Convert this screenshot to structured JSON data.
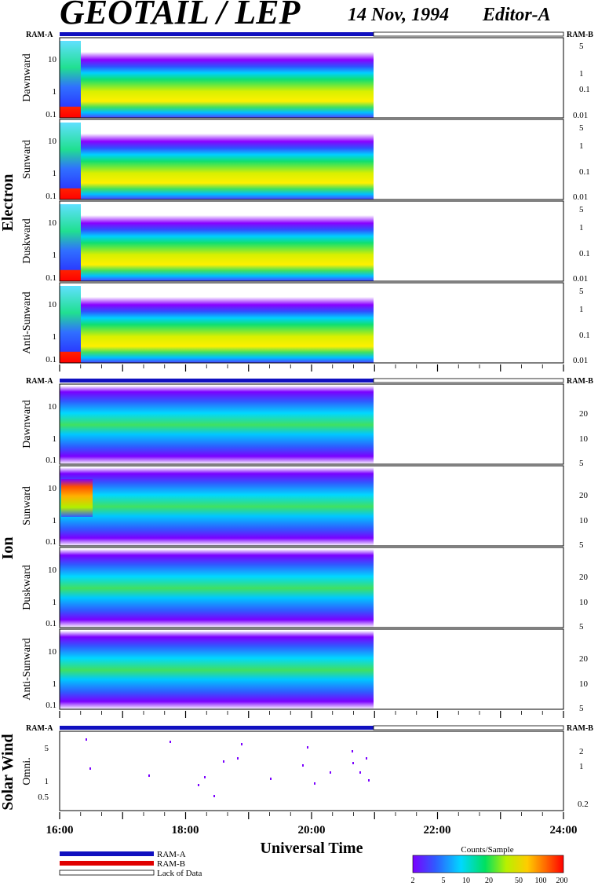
{
  "header": {
    "title": "GEOTAIL / LEP",
    "date": "14 Nov, 1994",
    "editor": "Editor-A"
  },
  "legend": {
    "ram_a": "RAM-A",
    "ram_b": "RAM-B",
    "lack": "Lack of Data"
  },
  "colorbar": {
    "title": "Counts/Sample",
    "ticks": [
      "2",
      "5",
      "10",
      "20",
      "50",
      "100",
      "200"
    ],
    "colors": [
      "#7a00ff",
      "#2f5bff",
      "#00d8ff",
      "#00e060",
      "#b8f000",
      "#ffcc00",
      "#ff6a00",
      "#ff0000"
    ]
  },
  "chart_data": {
    "type": "heatmap",
    "xlabel": "Universal Time",
    "x_ticks": [
      "16:00",
      "18:00",
      "20:00",
      "22:00",
      "24:00"
    ],
    "x_range": [
      "16:00",
      "24:00"
    ],
    "data_end": "21:00",
    "ram_labels": {
      "left": "RAM-A",
      "right": "RAM-B"
    },
    "groups": [
      {
        "name": "Electron",
        "ram_label_left": "RAM-A",
        "ram_label_right": "RAM-B",
        "panels": [
          {
            "label": "Dawnward",
            "left_ticks": [
              "10",
              "1",
              "0.1"
            ],
            "right_ticks": [
              "5",
              "1",
              "0.1",
              "0.01"
            ]
          },
          {
            "label": "Sunward",
            "left_ticks": [
              "10",
              "1",
              "0.1"
            ],
            "right_ticks": [
              "5",
              "1",
              "0.1",
              "0.01"
            ]
          },
          {
            "label": "Duskward",
            "left_ticks": [
              "10",
              "1",
              "0.1"
            ],
            "right_ticks": [
              "5",
              "1",
              "0.1",
              "0.01"
            ]
          },
          {
            "label": "Anti-Sunward",
            "left_ticks": [
              "10",
              "1",
              "0.1"
            ],
            "right_ticks": [
              "5",
              "1",
              "0.1",
              "0.01"
            ]
          }
        ]
      },
      {
        "name": "Ion",
        "ram_label_left": "RAM-A",
        "ram_label_right": "RAM-B",
        "panels": [
          {
            "label": "Dawnward",
            "left_ticks": [
              "10",
              "1",
              "0.1"
            ],
            "right_ticks": [
              "20",
              "10",
              "5"
            ]
          },
          {
            "label": "Sunward",
            "left_ticks": [
              "10",
              "1",
              "0.1"
            ],
            "right_ticks": [
              "20",
              "10",
              "5"
            ]
          },
          {
            "label": "Duskward",
            "left_ticks": [
              "10",
              "1",
              "0.1"
            ],
            "right_ticks": [
              "20",
              "10",
              "5"
            ]
          },
          {
            "label": "Anti-Sunward",
            "left_ticks": [
              "10",
              "1",
              "0.1"
            ],
            "right_ticks": [
              "20",
              "10",
              "5"
            ]
          }
        ]
      },
      {
        "name": "Solar Wind",
        "ram_label_left": "RAM-A",
        "ram_label_right": "RAM-B",
        "panels": [
          {
            "label": "Omni.",
            "left_ticks": [
              "5",
              "1",
              "0.5"
            ],
            "right_ticks": [
              "2",
              "1",
              "0.2"
            ]
          }
        ]
      }
    ]
  }
}
